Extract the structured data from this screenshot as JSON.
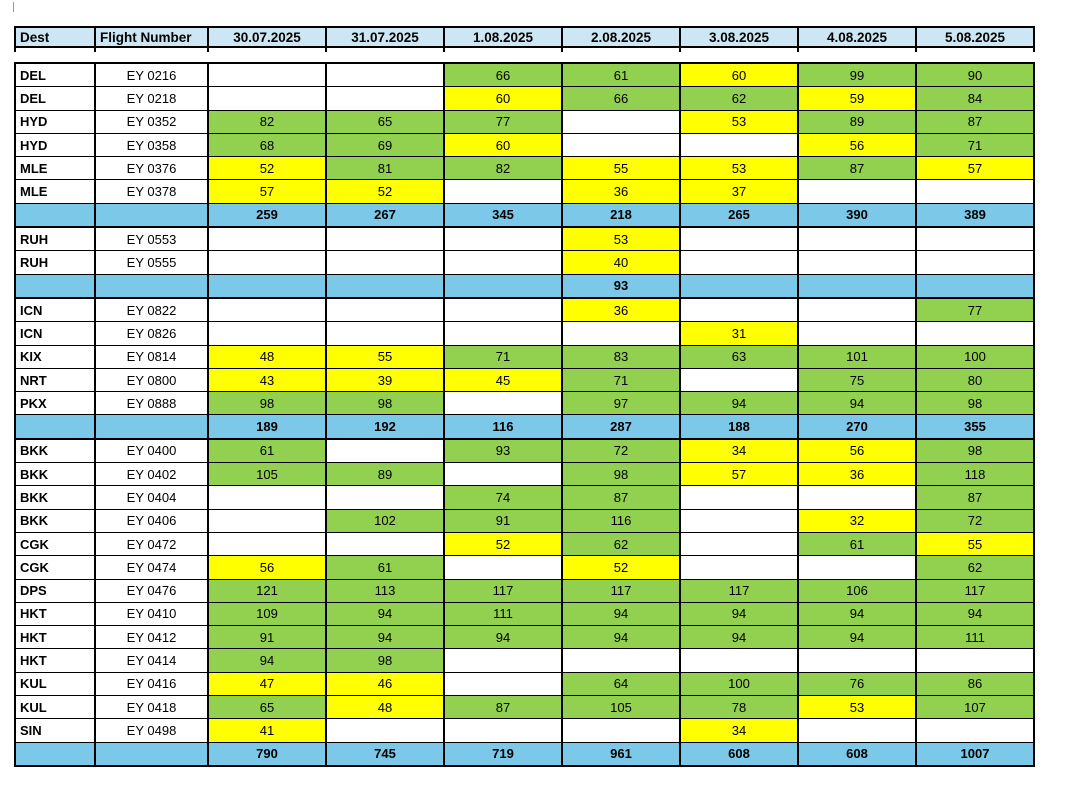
{
  "colors": {
    "green": "#92D050",
    "yellow": "#FFFF00",
    "subtotal_blue": "#7CC8E8",
    "header_blue": "#CDE6F3",
    "border": "#000000"
  },
  "table": {
    "columns": [
      "Dest",
      "Flight Number",
      "30.07.2025",
      "31.07.2025",
      "1.08.2025",
      "2.08.2025",
      "3.08.2025",
      "4.08.2025",
      "5.08.2025"
    ],
    "clipped_row_colors": [
      "w",
      "w",
      "w",
      "g",
      "g",
      "w",
      "y",
      "g",
      "g"
    ],
    "rows": [
      {
        "type": "data",
        "dest": "DEL",
        "flight": "EY 0216",
        "cells": [
          {
            "v": "",
            "c": "w"
          },
          {
            "v": "",
            "c": "w"
          },
          {
            "v": "66",
            "c": "g"
          },
          {
            "v": "61",
            "c": "g"
          },
          {
            "v": "60",
            "c": "y"
          },
          {
            "v": "99",
            "c": "g"
          },
          {
            "v": "90",
            "c": "g"
          }
        ]
      },
      {
        "type": "data",
        "dest": "DEL",
        "flight": "EY 0218",
        "cells": [
          {
            "v": "",
            "c": "w"
          },
          {
            "v": "",
            "c": "w"
          },
          {
            "v": "60",
            "c": "y"
          },
          {
            "v": "66",
            "c": "g"
          },
          {
            "v": "62",
            "c": "g"
          },
          {
            "v": "59",
            "c": "y"
          },
          {
            "v": "84",
            "c": "g"
          }
        ]
      },
      {
        "type": "data",
        "dest": "HYD",
        "flight": "EY 0352",
        "cells": [
          {
            "v": "82",
            "c": "g"
          },
          {
            "v": "65",
            "c": "g"
          },
          {
            "v": "77",
            "c": "g"
          },
          {
            "v": "",
            "c": "w"
          },
          {
            "v": "53",
            "c": "y"
          },
          {
            "v": "89",
            "c": "g"
          },
          {
            "v": "87",
            "c": "g"
          }
        ]
      },
      {
        "type": "data",
        "dest": "HYD",
        "flight": "EY 0358",
        "cells": [
          {
            "v": "68",
            "c": "g"
          },
          {
            "v": "69",
            "c": "g"
          },
          {
            "v": "60",
            "c": "y"
          },
          {
            "v": "",
            "c": "w"
          },
          {
            "v": "",
            "c": "w"
          },
          {
            "v": "56",
            "c": "y"
          },
          {
            "v": "71",
            "c": "g"
          }
        ]
      },
      {
        "type": "data",
        "dest": "MLE",
        "flight": "EY 0376",
        "cells": [
          {
            "v": "52",
            "c": "y"
          },
          {
            "v": "81",
            "c": "g"
          },
          {
            "v": "82",
            "c": "g"
          },
          {
            "v": "55",
            "c": "y"
          },
          {
            "v": "53",
            "c": "y"
          },
          {
            "v": "87",
            "c": "g"
          },
          {
            "v": "57",
            "c": "y"
          }
        ]
      },
      {
        "type": "data",
        "dest": "MLE",
        "flight": "EY 0378",
        "cells": [
          {
            "v": "57",
            "c": "y"
          },
          {
            "v": "52",
            "c": "y"
          },
          {
            "v": "",
            "c": "w"
          },
          {
            "v": "36",
            "c": "y"
          },
          {
            "v": "37",
            "c": "y"
          },
          {
            "v": "",
            "c": "w"
          },
          {
            "v": "",
            "c": "w"
          }
        ]
      },
      {
        "type": "subtotal",
        "dest": "",
        "flight": "",
        "cells": [
          {
            "v": "259",
            "c": "b"
          },
          {
            "v": "267",
            "c": "b"
          },
          {
            "v": "345",
            "c": "b"
          },
          {
            "v": "218",
            "c": "b"
          },
          {
            "v": "265",
            "c": "b"
          },
          {
            "v": "390",
            "c": "b"
          },
          {
            "v": "389",
            "c": "b"
          }
        ]
      },
      {
        "type": "data",
        "section_start": true,
        "dest": "RUH",
        "flight": "EY 0553",
        "cells": [
          {
            "v": "",
            "c": "w"
          },
          {
            "v": "",
            "c": "w"
          },
          {
            "v": "",
            "c": "w"
          },
          {
            "v": "53",
            "c": "y"
          },
          {
            "v": "",
            "c": "w"
          },
          {
            "v": "",
            "c": "w"
          },
          {
            "v": "",
            "c": "w"
          }
        ]
      },
      {
        "type": "data",
        "dest": "RUH",
        "flight": "EY 0555",
        "cells": [
          {
            "v": "",
            "c": "w"
          },
          {
            "v": "",
            "c": "w"
          },
          {
            "v": "",
            "c": "w"
          },
          {
            "v": "40",
            "c": "y"
          },
          {
            "v": "",
            "c": "w"
          },
          {
            "v": "",
            "c": "w"
          },
          {
            "v": "",
            "c": "w"
          }
        ]
      },
      {
        "type": "subtotal",
        "dest": "",
        "flight": "",
        "cells": [
          {
            "v": "",
            "c": "b"
          },
          {
            "v": "",
            "c": "b"
          },
          {
            "v": "",
            "c": "b"
          },
          {
            "v": "93",
            "c": "b"
          },
          {
            "v": "",
            "c": "b"
          },
          {
            "v": "",
            "c": "b"
          },
          {
            "v": "",
            "c": "b"
          }
        ]
      },
      {
        "type": "data",
        "section_start": true,
        "dest": "ICN",
        "flight": "EY 0822",
        "cells": [
          {
            "v": "",
            "c": "w"
          },
          {
            "v": "",
            "c": "w"
          },
          {
            "v": "",
            "c": "w"
          },
          {
            "v": "36",
            "c": "y"
          },
          {
            "v": "",
            "c": "w"
          },
          {
            "v": "",
            "c": "w"
          },
          {
            "v": "77",
            "c": "g"
          }
        ]
      },
      {
        "type": "data",
        "dest": "ICN",
        "flight": "EY 0826",
        "cells": [
          {
            "v": "",
            "c": "w"
          },
          {
            "v": "",
            "c": "w"
          },
          {
            "v": "",
            "c": "w"
          },
          {
            "v": "",
            "c": "w"
          },
          {
            "v": "31",
            "c": "y"
          },
          {
            "v": "",
            "c": "w"
          },
          {
            "v": "",
            "c": "w"
          }
        ]
      },
      {
        "type": "data",
        "dest": "KIX",
        "flight": "EY 0814",
        "cells": [
          {
            "v": "48",
            "c": "y"
          },
          {
            "v": "55",
            "c": "y"
          },
          {
            "v": "71",
            "c": "g"
          },
          {
            "v": "83",
            "c": "g"
          },
          {
            "v": "63",
            "c": "g"
          },
          {
            "v": "101",
            "c": "g"
          },
          {
            "v": "100",
            "c": "g"
          }
        ]
      },
      {
        "type": "data",
        "dest": "NRT",
        "flight": "EY 0800",
        "cells": [
          {
            "v": "43",
            "c": "y"
          },
          {
            "v": "39",
            "c": "y"
          },
          {
            "v": "45",
            "c": "y"
          },
          {
            "v": "71",
            "c": "g"
          },
          {
            "v": "",
            "c": "w"
          },
          {
            "v": "75",
            "c": "g"
          },
          {
            "v": "80",
            "c": "g"
          }
        ]
      },
      {
        "type": "data",
        "dest": "PKX",
        "flight": "EY 0888",
        "cells": [
          {
            "v": "98",
            "c": "g"
          },
          {
            "v": "98",
            "c": "g"
          },
          {
            "v": "",
            "c": "w"
          },
          {
            "v": "97",
            "c": "g"
          },
          {
            "v": "94",
            "c": "g"
          },
          {
            "v": "94",
            "c": "g"
          },
          {
            "v": "98",
            "c": "g"
          }
        ]
      },
      {
        "type": "subtotal",
        "dest": "",
        "flight": "",
        "cells": [
          {
            "v": "189",
            "c": "b"
          },
          {
            "v": "192",
            "c": "b"
          },
          {
            "v": "116",
            "c": "b"
          },
          {
            "v": "287",
            "c": "b"
          },
          {
            "v": "188",
            "c": "b"
          },
          {
            "v": "270",
            "c": "b"
          },
          {
            "v": "355",
            "c": "b"
          }
        ]
      },
      {
        "type": "data",
        "section_start": true,
        "dest": "BKK",
        "flight": "EY 0400",
        "cells": [
          {
            "v": "61",
            "c": "g"
          },
          {
            "v": "",
            "c": "w"
          },
          {
            "v": "93",
            "c": "g"
          },
          {
            "v": "72",
            "c": "g"
          },
          {
            "v": "34",
            "c": "y"
          },
          {
            "v": "56",
            "c": "y"
          },
          {
            "v": "98",
            "c": "g"
          }
        ]
      },
      {
        "type": "data",
        "dest": "BKK",
        "flight": "EY 0402",
        "cells": [
          {
            "v": "105",
            "c": "g"
          },
          {
            "v": "89",
            "c": "g"
          },
          {
            "v": "",
            "c": "w"
          },
          {
            "v": "98",
            "c": "g"
          },
          {
            "v": "57",
            "c": "y"
          },
          {
            "v": "36",
            "c": "y"
          },
          {
            "v": "118",
            "c": "g"
          }
        ]
      },
      {
        "type": "data",
        "dest": "BKK",
        "flight": "EY 0404",
        "cells": [
          {
            "v": "",
            "c": "w"
          },
          {
            "v": "",
            "c": "w"
          },
          {
            "v": "74",
            "c": "g"
          },
          {
            "v": "87",
            "c": "g"
          },
          {
            "v": "",
            "c": "w"
          },
          {
            "v": "",
            "c": "w"
          },
          {
            "v": "87",
            "c": "g"
          }
        ]
      },
      {
        "type": "data",
        "dest": "BKK",
        "flight": "EY 0406",
        "cells": [
          {
            "v": "",
            "c": "w"
          },
          {
            "v": "102",
            "c": "g"
          },
          {
            "v": "91",
            "c": "g"
          },
          {
            "v": "116",
            "c": "g"
          },
          {
            "v": "",
            "c": "w"
          },
          {
            "v": "32",
            "c": "y"
          },
          {
            "v": "72",
            "c": "g"
          }
        ]
      },
      {
        "type": "data",
        "dest": "CGK",
        "flight": "EY 0472",
        "cells": [
          {
            "v": "",
            "c": "w"
          },
          {
            "v": "",
            "c": "w"
          },
          {
            "v": "52",
            "c": "y"
          },
          {
            "v": "62",
            "c": "g"
          },
          {
            "v": "",
            "c": "w"
          },
          {
            "v": "61",
            "c": "g"
          },
          {
            "v": "55",
            "c": "y"
          }
        ]
      },
      {
        "type": "data",
        "dest": "CGK",
        "flight": "EY 0474",
        "cells": [
          {
            "v": "56",
            "c": "y"
          },
          {
            "v": "61",
            "c": "g"
          },
          {
            "v": "",
            "c": "w"
          },
          {
            "v": "52",
            "c": "y"
          },
          {
            "v": "",
            "c": "w"
          },
          {
            "v": "",
            "c": "w"
          },
          {
            "v": "62",
            "c": "g"
          }
        ]
      },
      {
        "type": "data",
        "dest": "DPS",
        "flight": "EY 0476",
        "cells": [
          {
            "v": "121",
            "c": "g"
          },
          {
            "v": "113",
            "c": "g"
          },
          {
            "v": "117",
            "c": "g"
          },
          {
            "v": "117",
            "c": "g"
          },
          {
            "v": "117",
            "c": "g"
          },
          {
            "v": "106",
            "c": "g"
          },
          {
            "v": "117",
            "c": "g"
          }
        ]
      },
      {
        "type": "data",
        "dest": "HKT",
        "flight": "EY 0410",
        "cells": [
          {
            "v": "109",
            "c": "g"
          },
          {
            "v": "94",
            "c": "g"
          },
          {
            "v": "111",
            "c": "g"
          },
          {
            "v": "94",
            "c": "g"
          },
          {
            "v": "94",
            "c": "g"
          },
          {
            "v": "94",
            "c": "g"
          },
          {
            "v": "94",
            "c": "g"
          }
        ]
      },
      {
        "type": "data",
        "dest": "HKT",
        "flight": "EY 0412",
        "cells": [
          {
            "v": "91",
            "c": "g"
          },
          {
            "v": "94",
            "c": "g"
          },
          {
            "v": "94",
            "c": "g"
          },
          {
            "v": "94",
            "c": "g"
          },
          {
            "v": "94",
            "c": "g"
          },
          {
            "v": "94",
            "c": "g"
          },
          {
            "v": "111",
            "c": "g"
          }
        ]
      },
      {
        "type": "data",
        "dest": "HKT",
        "flight": "EY 0414",
        "cells": [
          {
            "v": "94",
            "c": "g"
          },
          {
            "v": "98",
            "c": "g"
          },
          {
            "v": "",
            "c": "w"
          },
          {
            "v": "",
            "c": "w"
          },
          {
            "v": "",
            "c": "w"
          },
          {
            "v": "",
            "c": "w"
          },
          {
            "v": "",
            "c": "w"
          }
        ]
      },
      {
        "type": "data",
        "dest": "KUL",
        "flight": "EY 0416",
        "cells": [
          {
            "v": "47",
            "c": "y"
          },
          {
            "v": "46",
            "c": "y"
          },
          {
            "v": "",
            "c": "w"
          },
          {
            "v": "64",
            "c": "g"
          },
          {
            "v": "100",
            "c": "g"
          },
          {
            "v": "76",
            "c": "g"
          },
          {
            "v": "86",
            "c": "g"
          }
        ]
      },
      {
        "type": "data",
        "dest": "KUL",
        "flight": "EY 0418",
        "cells": [
          {
            "v": "65",
            "c": "g"
          },
          {
            "v": "48",
            "c": "y"
          },
          {
            "v": "87",
            "c": "g"
          },
          {
            "v": "105",
            "c": "g"
          },
          {
            "v": "78",
            "c": "g"
          },
          {
            "v": "53",
            "c": "y"
          },
          {
            "v": "107",
            "c": "g"
          }
        ]
      },
      {
        "type": "data",
        "dest": "SIN",
        "flight": "EY 0498",
        "cells": [
          {
            "v": "41",
            "c": "y"
          },
          {
            "v": "",
            "c": "w"
          },
          {
            "v": "",
            "c": "w"
          },
          {
            "v": "",
            "c": "w"
          },
          {
            "v": "34",
            "c": "y"
          },
          {
            "v": "",
            "c": "w"
          },
          {
            "v": "",
            "c": "w"
          }
        ]
      },
      {
        "type": "total",
        "dest": "",
        "flight": "",
        "cells": [
          {
            "v": "790",
            "c": "b"
          },
          {
            "v": "745",
            "c": "b"
          },
          {
            "v": "719",
            "c": "b"
          },
          {
            "v": "961",
            "c": "b"
          },
          {
            "v": "608",
            "c": "b"
          },
          {
            "v": "608",
            "c": "b"
          },
          {
            "v": "1007",
            "c": "b"
          }
        ]
      }
    ]
  }
}
